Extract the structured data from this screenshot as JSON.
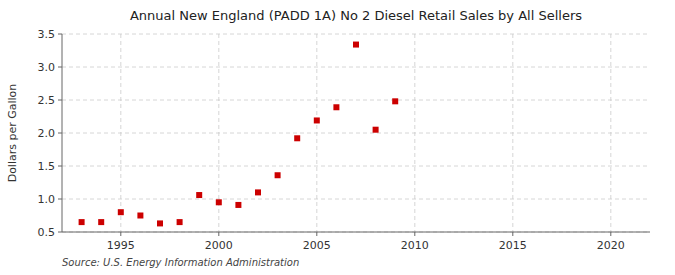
{
  "chart_data": {
    "type": "scatter",
    "title": "Annual New England (PADD 1A) No 2 Diesel Retail Sales by All Sellers",
    "ylabel": "Dollars per Gallon",
    "annotation": "Source: U.S. Energy Information Administration",
    "x": [
      1993,
      1994,
      1995,
      1996,
      1997,
      1998,
      1999,
      2000,
      2001,
      2002,
      2003,
      2004,
      2005,
      2006,
      2007,
      2008,
      2009
    ],
    "values": [
      0.65,
      0.65,
      0.8,
      0.75,
      0.63,
      0.65,
      1.06,
      0.95,
      0.91,
      1.1,
      1.36,
      1.92,
      2.19,
      2.39,
      3.34,
      2.05,
      2.48
    ],
    "color": "#cc0000",
    "marker": "square",
    "xlim": [
      1992,
      2022
    ],
    "ylim": [
      0.5,
      3.5
    ],
    "xticks": [
      1995,
      2000,
      2005,
      2010,
      2015,
      2020
    ],
    "yticks": [
      0.5,
      {
        "value": 1.0,
        "label": "1.0"
      },
      1.5,
      {
        "value": 2.0,
        "label": "2.0"
      },
      2.5,
      {
        "value": 3.0,
        "label": "3.0"
      },
      3.5
    ],
    "grid": true
  }
}
